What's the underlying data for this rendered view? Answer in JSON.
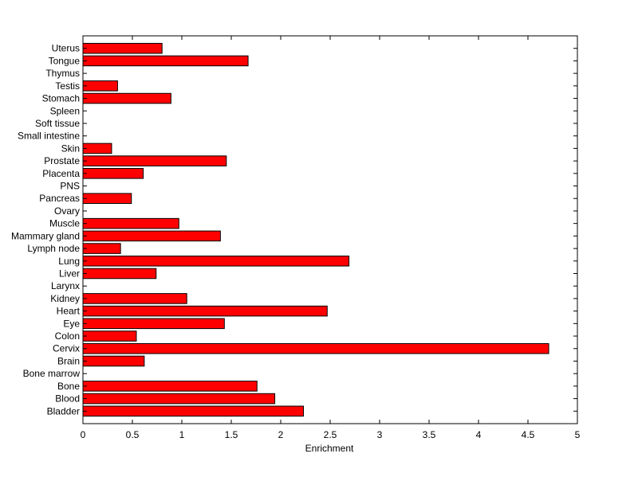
{
  "chart_data": {
    "type": "bar",
    "orientation": "horizontal",
    "categories": [
      "Bladder",
      "Blood",
      "Bone",
      "Bone marrow",
      "Brain",
      "Cervix",
      "Colon",
      "Eye",
      "Heart",
      "Kidney",
      "Larynx",
      "Liver",
      "Lung",
      "Lymph node",
      "Mammary gland",
      "Muscle",
      "Ovary",
      "Pancreas",
      "PNS",
      "Placenta",
      "Prostate",
      "Skin",
      "Small intestine",
      "Soft tissue",
      "Spleen",
      "Stomach",
      "Testis",
      "Thymus",
      "Tongue",
      "Uterus"
    ],
    "values": [
      2.23,
      1.94,
      1.76,
      0,
      0.62,
      4.71,
      0.54,
      1.43,
      2.47,
      1.05,
      0,
      0.74,
      2.69,
      0.38,
      1.39,
      0.97,
      0,
      0.49,
      0,
      0.61,
      1.45,
      0.29,
      0,
      0,
      0,
      0.89,
      0.35,
      0,
      1.67,
      0.8
    ],
    "xlabel": "Enrichment",
    "ylabel": "",
    "xlim": [
      0,
      5
    ],
    "xticks": [
      "0",
      "0.5",
      "1",
      "1.5",
      "2",
      "2.5",
      "3",
      "3.5",
      "4",
      "4.5",
      "5"
    ],
    "bar_color": "#ff0000",
    "grid": false
  }
}
